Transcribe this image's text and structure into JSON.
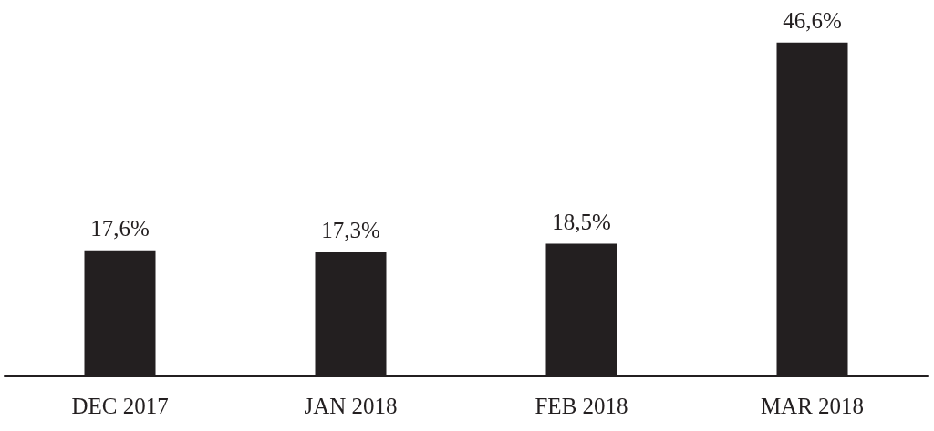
{
  "chart_data": {
    "type": "bar",
    "categories": [
      "DEC 2017",
      "JAN 2018",
      "FEB 2018",
      "MAR 2018"
    ],
    "values": [
      17.6,
      17.3,
      18.5,
      46.6
    ],
    "value_labels": [
      "17,6%",
      "17,3%",
      "18,5%",
      "46,6%"
    ],
    "color": "#231f20"
  }
}
